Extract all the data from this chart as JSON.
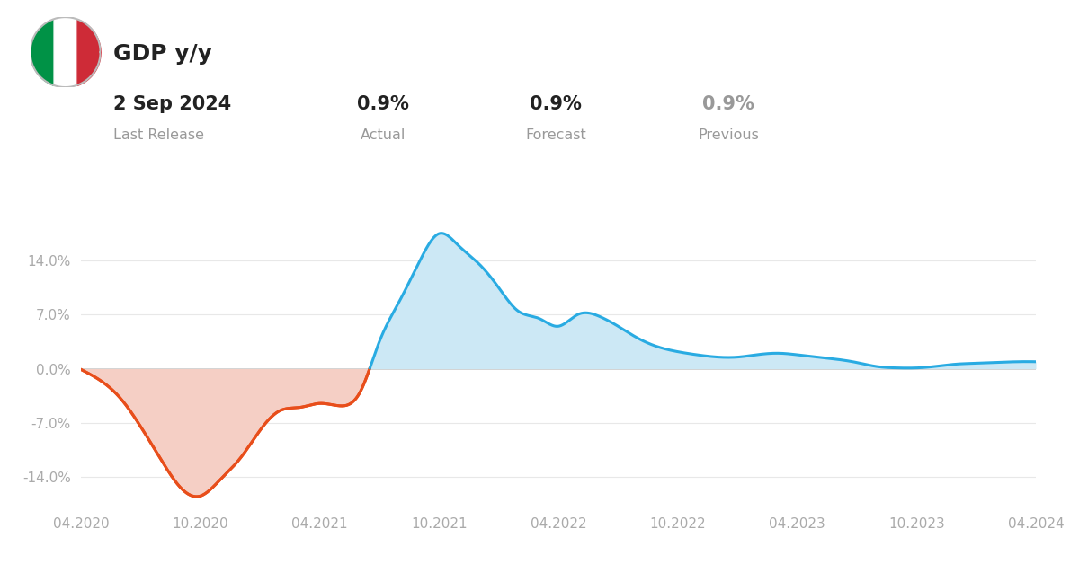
{
  "title": "GDP y/y",
  "date_label": "2 Sep 2024",
  "date_sublabel": "Last Release",
  "actual_value": "0.9%",
  "actual_label": "Actual",
  "forecast_value": "0.9%",
  "forecast_label": "Forecast",
  "previous_value": "0.9%",
  "previous_label": "Previous",
  "bg_color": "#ffffff",
  "line_color_negative": "#e84e1b",
  "line_color_positive": "#29abe2",
  "fill_color_negative": "#f5cfc5",
  "fill_color_positive": "#cce8f5",
  "grid_color": "#e8e8e8",
  "axis_label_color": "#aaaaaa",
  "text_color_dark": "#222222",
  "text_color_gray": "#999999",
  "ylim": [
    -18,
    20
  ],
  "yticks": [
    -14.0,
    -7.0,
    0.0,
    7.0,
    14.0
  ],
  "xtick_labels": [
    "04.2020",
    "10.2020",
    "04.2021",
    "10.2021",
    "04.2022",
    "10.2022",
    "04.2023",
    "10.2023",
    "04.2024"
  ],
  "x_dates": [
    2020.25,
    2020.33,
    2020.42,
    2020.5,
    2020.58,
    2020.67,
    2020.75,
    2020.83,
    2020.92,
    2021.0,
    2021.08,
    2021.17,
    2021.25,
    2021.33,
    2021.42,
    2021.5,
    2021.58,
    2021.67,
    2021.75,
    2021.83,
    2021.92,
    2022.0,
    2022.08,
    2022.17,
    2022.25,
    2022.33,
    2022.42,
    2022.5,
    2022.58,
    2022.67,
    2022.75,
    2022.83,
    2022.92,
    2023.0,
    2023.08,
    2023.17,
    2023.25,
    2023.33,
    2023.42,
    2023.5,
    2023.58,
    2023.67,
    2023.75,
    2023.83,
    2023.92,
    2024.0,
    2024.08,
    2024.17,
    2024.25
  ],
  "y_values": [
    -0.1,
    -1.5,
    -4.0,
    -7.5,
    -11.5,
    -15.5,
    -16.5,
    -14.5,
    -11.5,
    -8.0,
    -5.5,
    -5.0,
    -4.5,
    -4.8,
    -3.0,
    3.5,
    8.5,
    14.0,
    17.5,
    16.0,
    13.5,
    10.5,
    7.5,
    6.5,
    5.5,
    7.0,
    6.8,
    5.5,
    4.0,
    2.8,
    2.2,
    1.8,
    1.5,
    1.5,
    1.8,
    2.0,
    1.8,
    1.5,
    1.2,
    0.8,
    0.3,
    0.1,
    0.1,
    0.3,
    0.6,
    0.7,
    0.8,
    0.9,
    0.9
  ],
  "x_tick_positions": [
    2020.25,
    2020.75,
    2021.25,
    2021.75,
    2022.25,
    2022.75,
    2023.25,
    2023.75,
    2024.25
  ]
}
